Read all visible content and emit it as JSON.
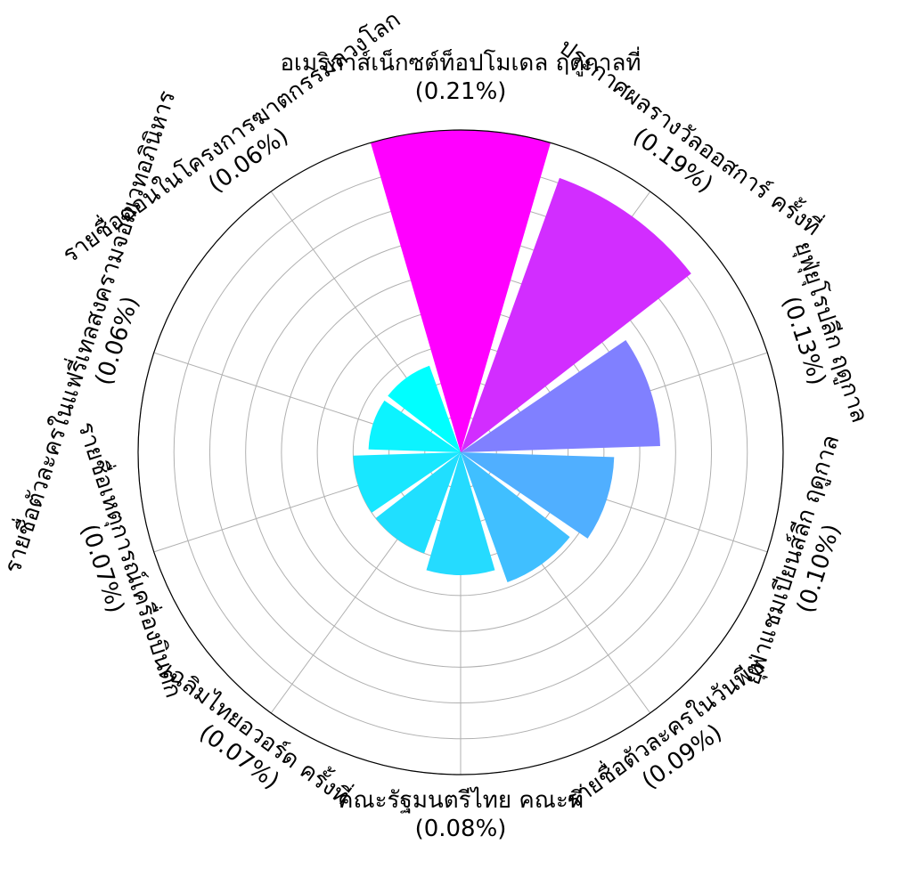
{
  "chart_data": {
    "type": "polar-bar",
    "rmax": 0.21,
    "grid_rings": 9,
    "grid": true,
    "series": [
      {
        "label": "อเมริกาส์เน็กซต์ท็อปโมเดล ฤดูกาลที่",
        "value": 0.21,
        "value_label": "(0.21%)",
        "color": "#ff00ff"
      },
      {
        "label": "ประกาศผลรางวัลออสการ์ ครั้งที่",
        "value": 0.19,
        "value_label": "(0.19%)",
        "color": "#d22dff"
      },
      {
        "label": "ยุฟุ่ยุโรปลีก ฤดูกาล",
        "value": 0.13,
        "value_label": "(0.13%)",
        "color": "#8080ff"
      },
      {
        "label": "ยุฟ่าแชมเปียนส์ลีก ฤดูกาล",
        "value": 0.1,
        "value_label": "(0.10%)",
        "color": "#50afff"
      },
      {
        "label": "รายชื่อตัวละครในวันพีซ",
        "value": 0.09,
        "value_label": "(0.09%)",
        "color": "#40bfff"
      },
      {
        "label": "คณะรัฐมนตรีไทย คณะที่",
        "value": 0.08,
        "value_label": "(0.08%)",
        "color": "#25dbff"
      },
      {
        "label": "เฉลิมไทยอวอร์ด ครั้งที่",
        "value": 0.07,
        "value_label": "(0.07%)",
        "color": "#20dfff"
      },
      {
        "label": "รายชื่อเหตุการณ์เครื่องบินตก",
        "value": 0.07,
        "value_label": "(0.07%)",
        "color": "#18e7ff"
      },
      {
        "label": "รายชื่อตัวละครในแฟรี่เทลสงครามจอมเวทอภินิหาร",
        "value": 0.06,
        "value_label": "(0.06%)",
        "color": "#0cf3ff"
      },
      {
        "label": "รายชื่อตอนในโครงการฆาตกรรมลวงโลก",
        "value": 0.06,
        "value_label": "(0.06%)",
        "color": "#00ffff"
      }
    ]
  }
}
